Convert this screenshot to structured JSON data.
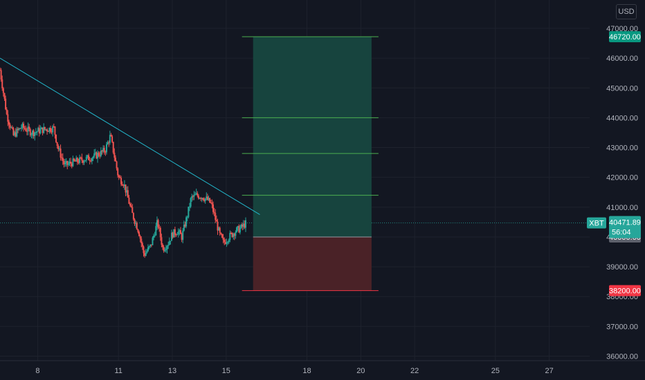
{
  "currency_button": "USD",
  "symbol_tag": "XBT",
  "countdown": "56:04",
  "colors": {
    "background": "#131722",
    "grid": "#1e222d",
    "up": "#26a69a",
    "down": "#ef5350",
    "trendline": "#22b5c9",
    "profit_zone": "#17443e",
    "loss_zone": "#4a2227",
    "target_line": "#4caf50",
    "stop_line": "#f23645",
    "current_tag": "#26a69a",
    "entry_tag": "#5d606b"
  },
  "chart_data": {
    "type": "candlestick",
    "x_tick_labels": [
      "8",
      "11",
      "13",
      "15",
      "18",
      "20",
      "22",
      "25",
      "27"
    ],
    "x_tick_days": [
      8,
      11,
      13,
      15,
      18,
      20,
      22,
      25,
      27
    ],
    "x_range_days": [
      6.6,
      28.5
    ],
    "y_tick_labels": [
      "36000.00",
      "37000.00",
      "38000.00",
      "39000.00",
      "40000.00",
      "41000.00",
      "42000.00",
      "43000.00",
      "44000.00",
      "45000.00",
      "46000.00",
      "47000.00"
    ],
    "y_ticks": [
      36000,
      37000,
      38000,
      39000,
      40000,
      41000,
      42000,
      43000,
      44000,
      45000,
      46000,
      47000
    ],
    "ylim": [
      35850,
      47950
    ],
    "price_path": [
      [
        6.6,
        45600
      ],
      [
        6.85,
        44100
      ],
      [
        7.1,
        43400
      ],
      [
        7.4,
        43700
      ],
      [
        7.8,
        43500
      ],
      [
        8.2,
        43600
      ],
      [
        8.6,
        43650
      ],
      [
        8.75,
        43000
      ],
      [
        9.0,
        42400
      ],
      [
        9.3,
        42500
      ],
      [
        9.7,
        42600
      ],
      [
        10.1,
        42700
      ],
      [
        10.5,
        42900
      ],
      [
        10.7,
        43400
      ],
      [
        10.85,
        42700
      ],
      [
        11.0,
        42000
      ],
      [
        11.2,
        41800
      ],
      [
        11.5,
        40800
      ],
      [
        11.75,
        40200
      ],
      [
        11.95,
        39400
      ],
      [
        12.2,
        39700
      ],
      [
        12.45,
        40500
      ],
      [
        12.65,
        39600
      ],
      [
        12.85,
        39800
      ],
      [
        13.0,
        40100
      ],
      [
        13.2,
        40200
      ],
      [
        13.35,
        40000
      ],
      [
        13.55,
        40700
      ],
      [
        13.7,
        41300
      ],
      [
        13.9,
        41400
      ],
      [
        14.1,
        41350
      ],
      [
        14.3,
        41250
      ],
      [
        14.45,
        41100
      ],
      [
        14.6,
        40600
      ],
      [
        14.75,
        40100
      ],
      [
        14.9,
        39800
      ],
      [
        15.1,
        40000
      ],
      [
        15.35,
        40200
      ],
      [
        15.55,
        40300
      ],
      [
        15.75,
        40471.89
      ]
    ],
    "current_price": "40471.89",
    "entry_price": "40000.00",
    "target_price": "46720.00",
    "stop_price": "38200.00",
    "long_position": {
      "entry": 40000,
      "stop": 38200,
      "target": 46720,
      "start_day": 16.0,
      "end_day": 20.4,
      "target_levels": [
        41400,
        42800,
        44000,
        46720
      ]
    },
    "trendline": [
      [
        6.6,
        46000
      ],
      [
        16.25,
        40750
      ]
    ]
  }
}
